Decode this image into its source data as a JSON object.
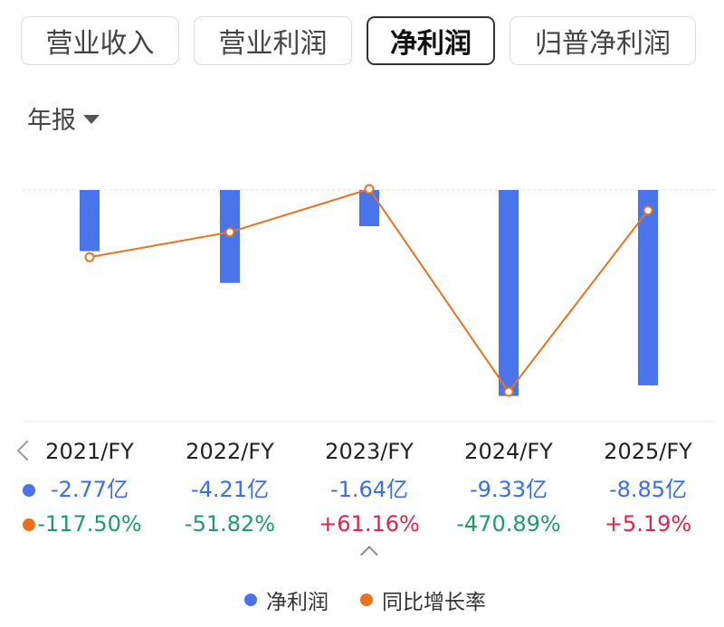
{
  "tabs": [
    {
      "label": "营业收入",
      "active": false
    },
    {
      "label": "营业利润",
      "active": false
    },
    {
      "label": "净利润",
      "active": true
    },
    {
      "label": "归普净利润",
      "active": false
    }
  ],
  "period": {
    "label": "年报"
  },
  "colors": {
    "bar": "#4a74ea",
    "line": "#e8731f",
    "up": "#e0244a",
    "down": "#1e9b6a"
  },
  "chart_data": {
    "type": "bar",
    "categories": [
      "2021/FY",
      "2022/FY",
      "2023/FY",
      "2024/FY",
      "2025/FY"
    ],
    "series": [
      {
        "name": "净利润",
        "type": "bar",
        "unit": "亿",
        "values": [
          -2.77,
          -4.21,
          -1.64,
          -9.33,
          -8.85
        ]
      },
      {
        "name": "同比增长率",
        "type": "line",
        "unit": "%",
        "values": [
          -117.5,
          -51.82,
          61.16,
          -470.89,
          5.19
        ]
      }
    ],
    "legend": [
      "净利润",
      "同比增长率"
    ],
    "legend_position": "bottom"
  },
  "table": {
    "years": [
      "2021/FY",
      "2022/FY",
      "2023/FY",
      "2024/FY",
      "2025/FY"
    ],
    "profit": [
      "-2.77亿",
      "-4.21亿",
      "-1.64亿",
      "-9.33亿",
      "-8.85亿"
    ],
    "growth": [
      "-117.50%",
      "-51.82%",
      "+61.16%",
      "-470.89%",
      "+5.19%"
    ]
  },
  "legend": {
    "profit_label": "净利润",
    "growth_label": "同比增长率"
  }
}
